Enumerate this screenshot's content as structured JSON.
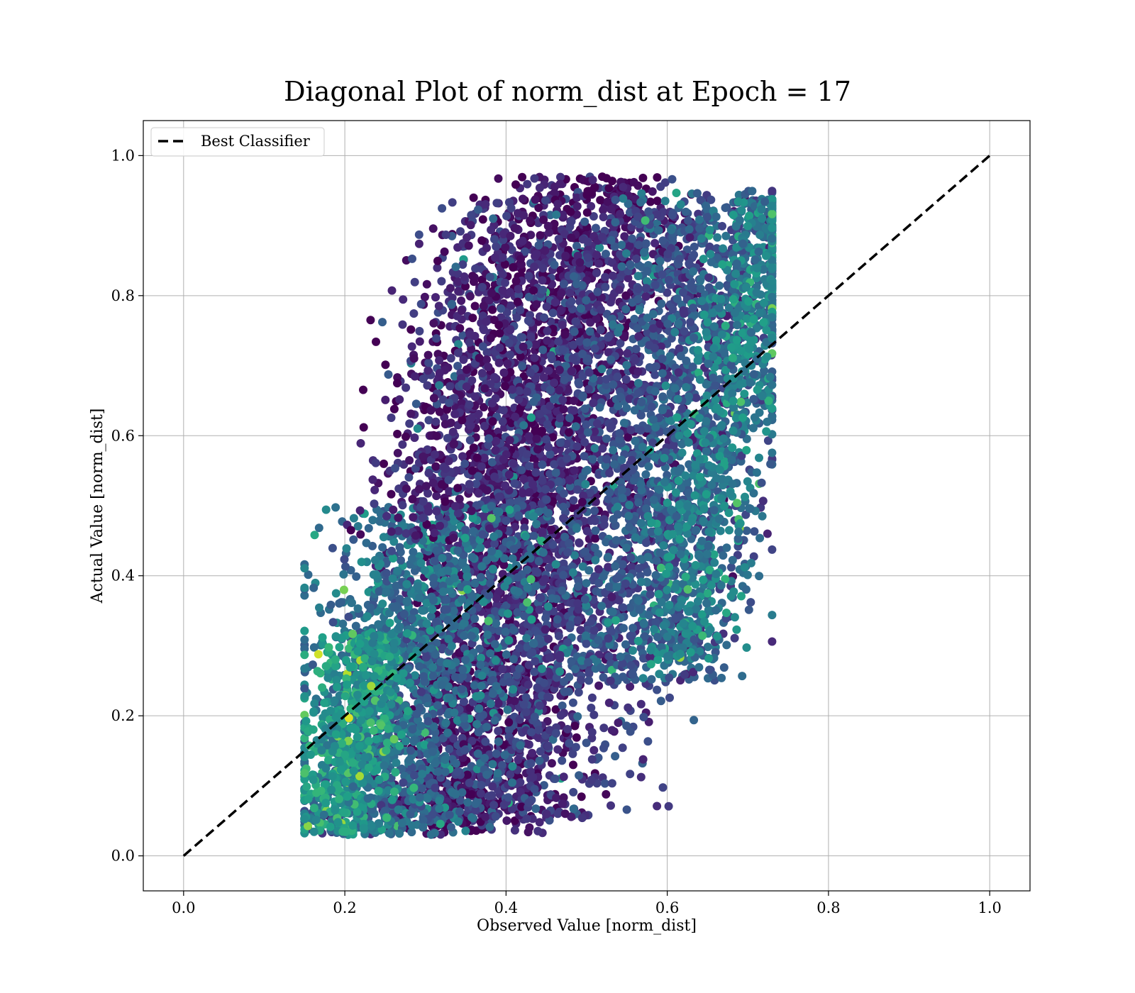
{
  "chart_data": {
    "type": "scatter",
    "title": "Diagonal Plot of norm_dist at Epoch = 17",
    "xlabel": "Observed Value [norm_dist]",
    "ylabel": "Actual Value [norm_dist]",
    "xlim": [
      -0.05,
      1.05
    ],
    "ylim": [
      -0.05,
      1.05
    ],
    "xticks": [
      "0.0",
      "0.2",
      "0.4",
      "0.6",
      "0.8",
      "1.0"
    ],
    "yticks": [
      "0.0",
      "0.2",
      "0.4",
      "0.6",
      "0.8",
      "1.0"
    ],
    "grid": true,
    "legend": {
      "position": "top-left",
      "entries": [
        "Best Classifier"
      ]
    },
    "colormap": "viridis",
    "reference_line": {
      "name": "Best Classifier",
      "x": [
        0,
        1
      ],
      "y": [
        0,
        1
      ],
      "color": "#000000",
      "style": "dashed"
    },
    "point_clusters": [
      {
        "x_center": 0.42,
        "x_spread": 0.06,
        "y_min": 0.03,
        "y_max": 0.97,
        "count": 2200,
        "color_level": 0.05
      },
      {
        "x_center": 0.47,
        "x_spread": 0.08,
        "y_min": 0.05,
        "y_max": 0.92,
        "count": 1800,
        "color_level": 0.18
      },
      {
        "x_center": 0.62,
        "x_spread": 0.06,
        "y_min": 0.25,
        "y_max": 0.95,
        "count": 1500,
        "color_level": 0.28
      },
      {
        "x_center": 0.67,
        "x_spread": 0.03,
        "y_min": 0.28,
        "y_max": 0.94,
        "count": 700,
        "color_level": 0.45
      },
      {
        "x_center": 0.28,
        "x_spread": 0.06,
        "y_min": 0.03,
        "y_max": 0.5,
        "count": 1400,
        "color_level": 0.35
      },
      {
        "x_center": 0.21,
        "x_spread": 0.03,
        "y_min": 0.03,
        "y_max": 0.32,
        "count": 500,
        "color_level": 0.55
      },
      {
        "x_center": 0.34,
        "x_spread": 0.04,
        "y_min": 0.45,
        "y_max": 0.94,
        "count": 500,
        "color_level": 0.1
      }
    ]
  }
}
